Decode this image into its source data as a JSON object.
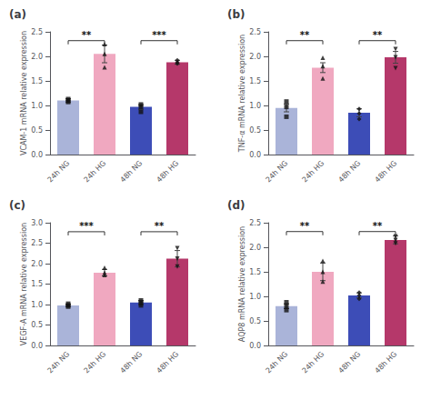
{
  "chart_data": [
    {
      "type": "bar",
      "title": "(a)",
      "ylabel": "VCAM-1 mRNA relative expression",
      "categories": [
        "24h NG",
        "24h HG",
        "48h NG",
        "48h HG"
      ],
      "ylim": [
        0,
        2.5
      ],
      "yticks": [
        {
          "value": 0,
          "label": "0.0"
        },
        0.5,
        {
          "value": 1.0,
          "label": "1.0"
        },
        1.5,
        {
          "value": 2.0,
          "label": "2.0"
        },
        2.5
      ],
      "grid": false,
      "series": [
        {
          "type": "bar",
          "values": [
            1.1,
            2.05,
            0.97,
            1.88
          ],
          "errors": [
            0.04,
            0.18,
            0.05,
            0.04
          ],
          "colors": [
            "#aab4d9",
            "#f0a8c0",
            "#3d4db7",
            "#b5386a"
          ]
        },
        {
          "type": "scatter",
          "color": "#111111",
          "values": [
            [
              1.07,
              1.1,
              1.13
            ],
            [
              1.78,
              2.05,
              2.25
            ],
            [
              0.87,
              0.97,
              1.02
            ],
            [
              1.85,
              1.88,
              1.92
            ]
          ],
          "marker": [
            "square",
            "triangle_up",
            "square",
            "diamond"
          ]
        }
      ],
      "annotations": [
        {
          "x1": "24h NG",
          "x2": "24h HG",
          "y": 2.32,
          "text": "**"
        },
        {
          "x1": "48h NG",
          "x2": "48h HG",
          "y": 2.32,
          "text": "***"
        }
      ]
    },
    {
      "type": "bar",
      "title": "(b)",
      "ylabel": "TNF-α mRNA relative expression",
      "categories": [
        "24h NG",
        "24h HG",
        "48h NG",
        "48h HG"
      ],
      "ylim": [
        0,
        2.5
      ],
      "yticks": [
        {
          "value": 0,
          "label": "0.0"
        },
        0.5,
        {
          "value": 1.0,
          "label": "1.0"
        },
        1.5,
        {
          "value": 2.0,
          "label": "2.0"
        },
        2.5
      ],
      "grid": false,
      "series": [
        {
          "type": "bar",
          "values": [
            0.95,
            1.77,
            0.85,
            1.98
          ],
          "errors": [
            0.08,
            0.1,
            0.08,
            0.12
          ],
          "colors": [
            "#aab4d9",
            "#f0a8c0",
            "#3d4db7",
            "#b5386a"
          ]
        },
        {
          "type": "scatter",
          "color": "#111111",
          "values": [
            [
              0.77,
              0.97,
              1.08
            ],
            [
              1.55,
              1.8,
              1.97
            ],
            [
              0.72,
              0.84,
              0.93
            ],
            [
              1.76,
              1.98,
              2.15
            ]
          ],
          "marker": [
            "square",
            "triangle_up",
            "diamond",
            "triangle_down"
          ]
        }
      ],
      "annotations": [
        {
          "x1": "24h NG",
          "x2": "24h HG",
          "y": 2.32,
          "text": "**"
        },
        {
          "x1": "48h NG",
          "x2": "48h HG",
          "y": 2.32,
          "text": "**"
        }
      ]
    },
    {
      "type": "bar",
      "title": "(c)",
      "ylabel": "VEGF-A mRNA relative expression",
      "categories": [
        "24h NG",
        "24h HG",
        "48h NG",
        "48h HG"
      ],
      "ylim": [
        0,
        3.0
      ],
      "yticks": [
        {
          "value": 0,
          "label": "0.0"
        },
        0.5,
        {
          "value": 1.0,
          "label": "1.0"
        },
        1.5,
        {
          "value": 2.0,
          "label": "2.0"
        },
        2.5,
        {
          "value": 3.0,
          "label": "3.0"
        }
      ],
      "grid": false,
      "series": [
        {
          "type": "bar",
          "values": [
            0.98,
            1.78,
            1.05,
            2.12
          ],
          "errors": [
            0.03,
            0.08,
            0.05,
            0.2
          ],
          "colors": [
            "#aab4d9",
            "#f0a8c0",
            "#3d4db7",
            "#b5386a"
          ]
        },
        {
          "type": "scatter",
          "color": "#111111",
          "values": [
            [
              0.95,
              0.98,
              1.02
            ],
            [
              1.72,
              1.78,
              1.9
            ],
            [
              0.98,
              1.04,
              1.1
            ],
            [
              1.93,
              2.12,
              2.38
            ]
          ],
          "marker": [
            "square",
            "triangle_up",
            "square",
            "triangle_down"
          ]
        }
      ],
      "annotations": [
        {
          "x1": "24h NG",
          "x2": "24h HG",
          "y": 2.78,
          "text": "***"
        },
        {
          "x1": "48h NG",
          "x2": "48h HG",
          "y": 2.78,
          "text": "**"
        }
      ]
    },
    {
      "type": "bar",
      "title": "(d)",
      "ylabel": "AQP8 mRNA relative expression",
      "categories": [
        "24h NG",
        "24h HG",
        "48h NG",
        "48h HG"
      ],
      "ylim": [
        0,
        2.5
      ],
      "yticks": [
        {
          "value": 0,
          "label": "0.0"
        },
        0.5,
        {
          "value": 1.0,
          "label": "1.0"
        },
        1.5,
        {
          "value": 2.0,
          "label": "2.0"
        },
        2.5
      ],
      "grid": false,
      "series": [
        {
          "type": "bar",
          "values": [
            0.8,
            1.5,
            1.02,
            2.15
          ],
          "errors": [
            0.05,
            0.18,
            0.05,
            0.08
          ],
          "colors": [
            "#aab4d9",
            "#f0a8c0",
            "#3d4db7",
            "#b5386a"
          ]
        },
        {
          "type": "scatter",
          "color": "#111111",
          "values": [
            [
              0.72,
              0.8,
              0.88
            ],
            [
              1.3,
              1.5,
              1.72
            ],
            [
              0.95,
              1.02,
              1.08
            ],
            [
              2.08,
              2.15,
              2.22
            ]
          ],
          "marker": [
            "square",
            "triangle_up",
            "diamond",
            "triangle_down"
          ]
        }
      ],
      "annotations": [
        {
          "x1": "24h NG",
          "x2": "24h HG",
          "y": 2.32,
          "text": "**"
        },
        {
          "x1": "48h NG",
          "x2": "48h HG",
          "y": 2.32,
          "text": "**"
        }
      ]
    }
  ]
}
